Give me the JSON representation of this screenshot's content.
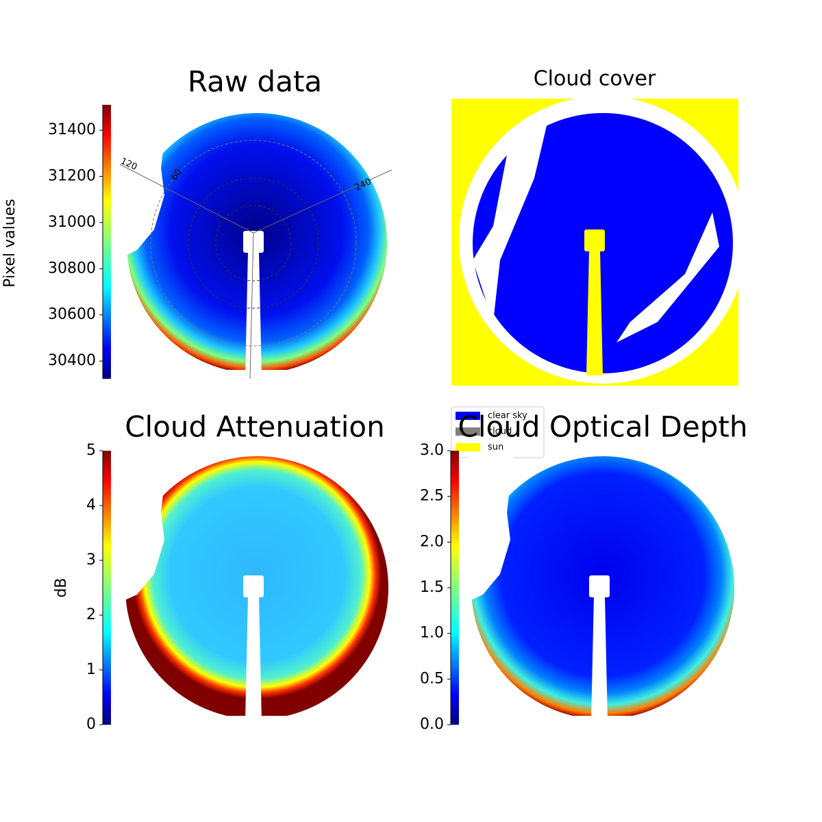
{
  "chart_data": [
    {
      "type": "image",
      "title": "Raw data",
      "colormap": "jet",
      "colorbar": {
        "label": "Pixel values",
        "ylim": [
          30323,
          31510
        ],
        "yticks": [
          30400,
          30600,
          30800,
          31000,
          31200,
          31400
        ]
      },
      "annotations": [
        "120",
        "60",
        "240"
      ]
    },
    {
      "type": "image",
      "title": "Cloud cover",
      "legend": "lower left",
      "series": [
        {
          "name": "clear sky",
          "color": "#0000ff"
        },
        {
          "name": "cloud",
          "color": "#808080"
        },
        {
          "name": "sun",
          "color": "#ffff00"
        }
      ]
    },
    {
      "type": "image",
      "title": "Cloud Attenuation",
      "colormap": "jet",
      "colorbar": {
        "label": "dB",
        "ylim": [
          0,
          5
        ],
        "yticks": [
          0,
          1,
          2,
          3,
          4,
          5
        ]
      }
    },
    {
      "type": "image",
      "title": "Cloud Optical Depth",
      "colormap": "jet",
      "colorbar": {
        "label": null,
        "ylim": [
          0,
          3
        ],
        "yticks": [
          {
            "value": 0,
            "label": "0.0"
          },
          0.5,
          {
            "value": 1,
            "label": "1.0"
          },
          1.5,
          {
            "value": 2,
            "label": "2.0"
          },
          2.5,
          {
            "value": 3,
            "label": "3.0"
          }
        ]
      }
    }
  ]
}
